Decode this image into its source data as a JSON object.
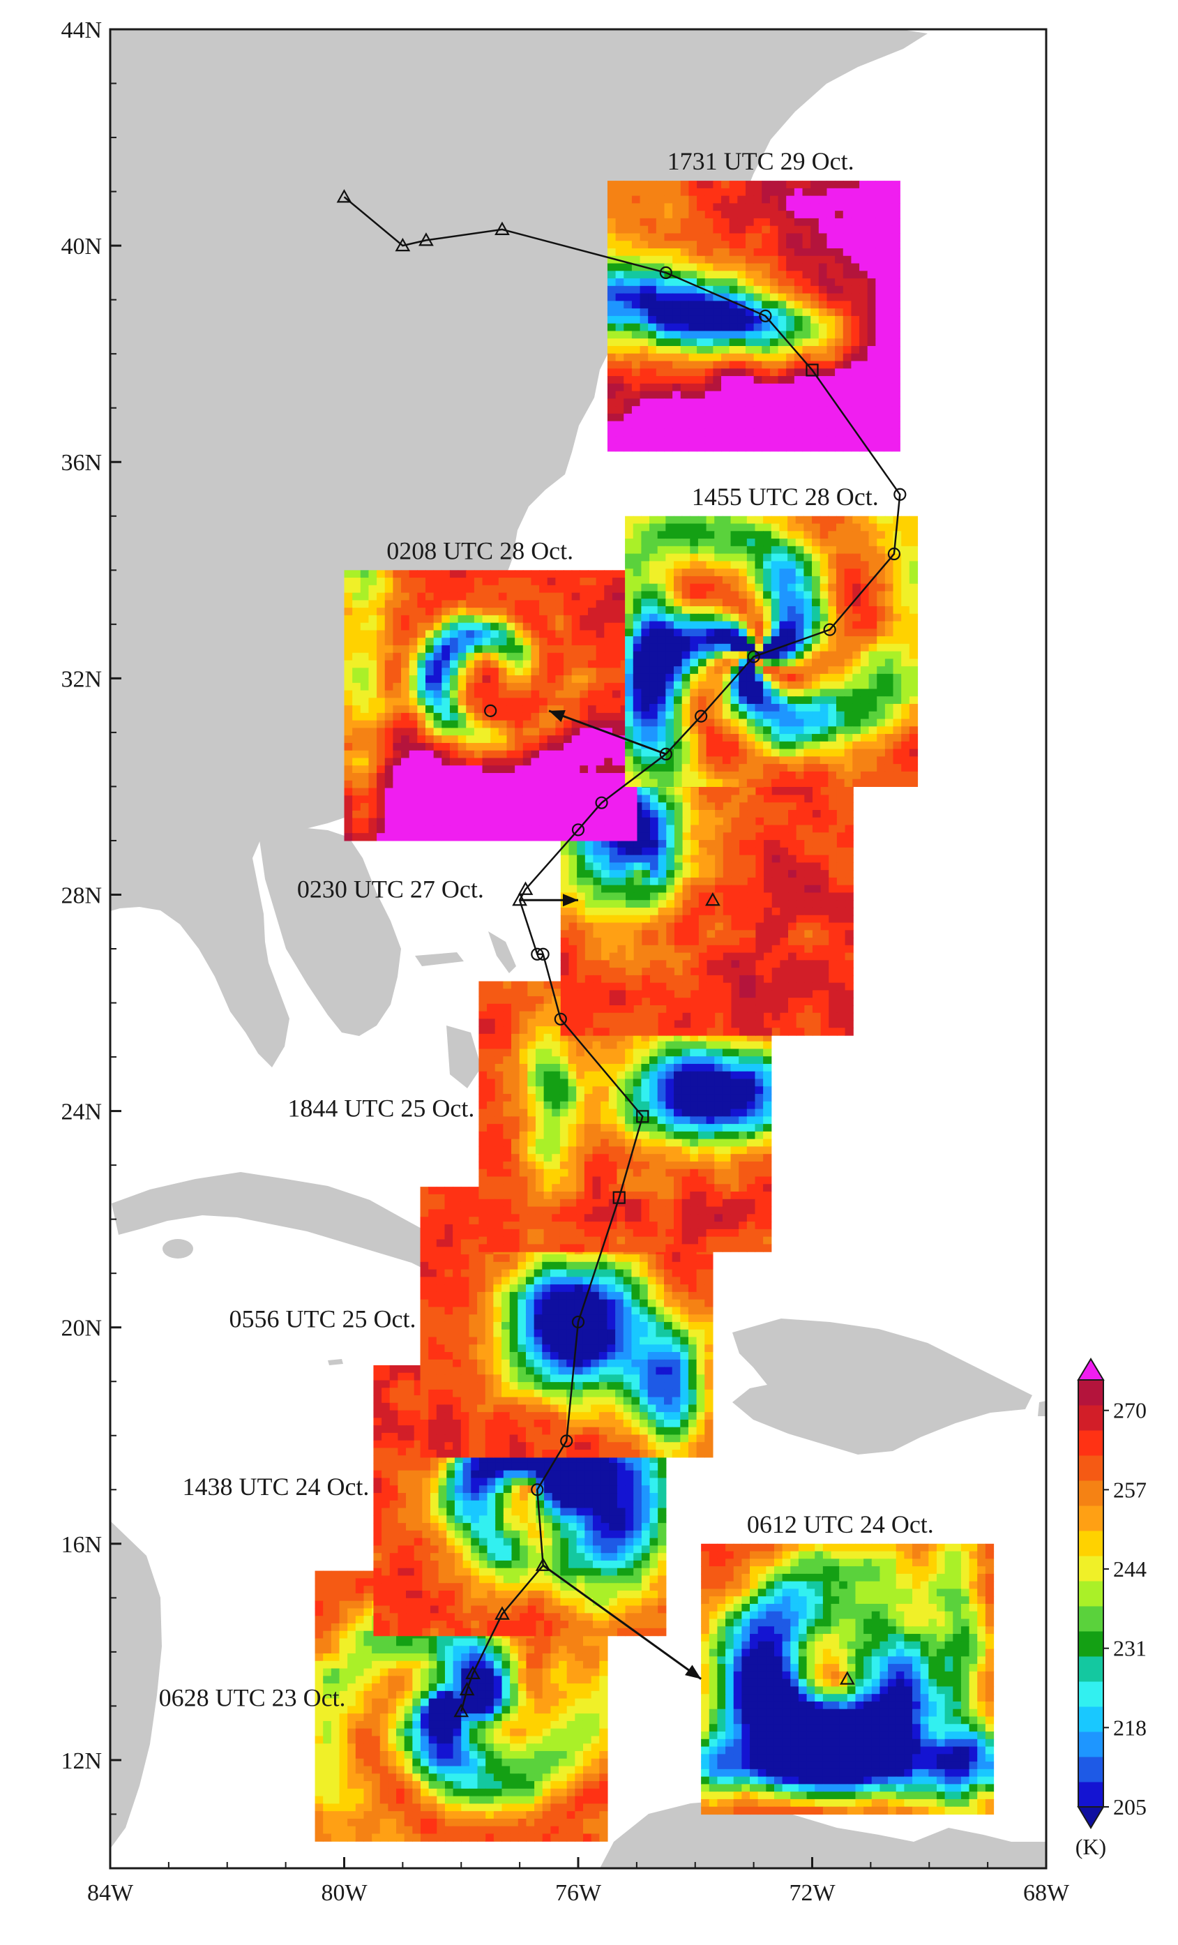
{
  "map": {
    "lon_range": [
      -84,
      -68
    ],
    "lat_range": [
      10,
      44
    ],
    "land_color": "#c8c8c8",
    "ocean_color": "#ffffff",
    "x_ticks": [
      {
        "lon": -84,
        "label": "84W"
      },
      {
        "lon": -80,
        "label": "80W"
      },
      {
        "lon": -76,
        "label": "76W"
      },
      {
        "lon": -72,
        "label": "72W"
      },
      {
        "lon": -68,
        "label": "68W"
      }
    ],
    "y_ticks": [
      {
        "lat": 12,
        "label": "12N"
      },
      {
        "lat": 16,
        "label": "16N"
      },
      {
        "lat": 20,
        "label": "20N"
      },
      {
        "lat": 24,
        "label": "24N"
      },
      {
        "lat": 28,
        "label": "28N"
      },
      {
        "lat": 32,
        "label": "32N"
      },
      {
        "lat": 36,
        "label": "36N"
      },
      {
        "lat": 40,
        "label": "40N"
      },
      {
        "lat": 44,
        "label": "44N"
      }
    ]
  },
  "panels": [
    {
      "id": "p0628",
      "label": "0628 UTC 23 Oct.",
      "lon": [
        -80.5,
        -75.5
      ],
      "lat": [
        10.5,
        15.5
      ],
      "variant": "pinwheel",
      "center": [
        -78,
        13
      ]
    },
    {
      "id": "p1438",
      "label": "1438 UTC 24 Oct.",
      "lon": [
        -79.5,
        -74.5
      ],
      "lat": [
        14.3,
        19.3
      ],
      "variant": "curl",
      "center": [
        -76.7,
        17
      ]
    },
    {
      "id": "p0556",
      "label": "0556 UTC 25 Oct.",
      "lon": [
        -78.7,
        -73.7
      ],
      "lat": [
        17.6,
        22.6
      ],
      "variant": "blob",
      "center": [
        -76,
        20
      ]
    },
    {
      "id": "p1844",
      "label": "1844 UTC 25 Oct.",
      "lon": [
        -77.7,
        -72.7
      ],
      "lat": [
        21.4,
        26.4
      ],
      "variant": "wide",
      "center": [
        -74.5,
        24.3
      ]
    },
    {
      "id": "p0230",
      "label": "0230 UTC 27 Oct.",
      "lon": [
        -76.3,
        -71.3
      ],
      "lat": [
        25.4,
        30.4
      ],
      "variant": "comma",
      "center": [
        -74.8,
        28.4
      ]
    },
    {
      "id": "p0208",
      "label": "0208 UTC 28 Oct.",
      "lon": [
        -80,
        -75
      ],
      "lat": [
        29,
        34
      ],
      "variant": "spiral",
      "center": [
        -77.5,
        32
      ]
    },
    {
      "id": "p1455",
      "label": "1455 UTC 28 Oct.",
      "lon": [
        -75.2,
        -70.2
      ],
      "lat": [
        30,
        35
      ],
      "variant": "bands",
      "center": [
        -73,
        32.4
      ]
    },
    {
      "id": "p1731",
      "label": "1731 UTC 29 Oct.",
      "lon": [
        -75.5,
        -70.5
      ],
      "lat": [
        36.2,
        41.2
      ],
      "variant": "frontal",
      "center": [
        -73.3,
        38.6
      ]
    },
    {
      "id": "p0612",
      "label": "0612 UTC 24 Oct.",
      "lon": [
        -73.9,
        -68.9
      ],
      "lat": [
        11,
        16
      ],
      "variant": "hook",
      "center": [
        -71.4,
        13.5
      ]
    }
  ],
  "track": [
    {
      "lon": -78.0,
      "lat": 12.9,
      "marker": "triangle"
    },
    {
      "lon": -77.9,
      "lat": 13.3,
      "marker": "triangle"
    },
    {
      "lon": -77.8,
      "lat": 13.6,
      "marker": "triangle"
    },
    {
      "lon": -77.3,
      "lat": 14.7,
      "marker": "triangle"
    },
    {
      "lon": -76.6,
      "lat": 15.6,
      "marker": "triangle"
    },
    {
      "lon": -76.7,
      "lat": 17.0,
      "marker": "circle"
    },
    {
      "lon": -76.2,
      "lat": 17.9,
      "marker": "circle"
    },
    {
      "lon": -76.0,
      "lat": 20.1,
      "marker": "circle"
    },
    {
      "lon": -75.3,
      "lat": 22.4,
      "marker": "square"
    },
    {
      "lon": -74.9,
      "lat": 23.9,
      "marker": "square"
    },
    {
      "lon": -76.3,
      "lat": 25.7,
      "marker": "circle"
    },
    {
      "lon": -76.6,
      "lat": 26.9,
      "marker": "circle"
    },
    {
      "lon": -76.7,
      "lat": 26.9,
      "marker": "circle"
    },
    {
      "lon": -77.0,
      "lat": 27.9,
      "marker": "triangle"
    },
    {
      "lon": -76.9,
      "lat": 28.1,
      "marker": "triangle"
    },
    {
      "lon": -76.0,
      "lat": 29.2,
      "marker": "circle"
    },
    {
      "lon": -75.6,
      "lat": 29.7,
      "marker": "circle"
    },
    {
      "lon": -74.5,
      "lat": 30.6,
      "marker": "circle"
    },
    {
      "lon": -73.9,
      "lat": 31.3,
      "marker": "circle"
    },
    {
      "lon": -73.0,
      "lat": 32.4,
      "marker": "circle"
    },
    {
      "lon": -71.7,
      "lat": 32.9,
      "marker": "circle"
    },
    {
      "lon": -70.6,
      "lat": 34.3,
      "marker": "circle"
    },
    {
      "lon": -70.5,
      "lat": 35.4,
      "marker": "circle"
    },
    {
      "lon": -72.0,
      "lat": 37.7,
      "marker": "square"
    },
    {
      "lon": -72.8,
      "lat": 38.7,
      "marker": "circle"
    },
    {
      "lon": -74.5,
      "lat": 39.5,
      "marker": "circle"
    },
    {
      "lon": -77.3,
      "lat": 40.3,
      "marker": "triangle"
    },
    {
      "lon": -78.6,
      "lat": 40.1,
      "marker": "triangle"
    },
    {
      "lon": -79.0,
      "lat": 40.0,
      "marker": "triangle"
    },
    {
      "lon": -80.0,
      "lat": 40.9,
      "marker": "triangle"
    }
  ],
  "extra_markers": [
    {
      "lon": -73.7,
      "lat": 27.9,
      "marker": "triangle"
    },
    {
      "lon": -71.4,
      "lat": 13.5,
      "marker": "triangle"
    },
    {
      "lon": -77.5,
      "lat": 31.4,
      "marker": "circle"
    }
  ],
  "arrows": [
    {
      "from": [
        -74.5,
        30.6
      ],
      "to": [
        -76.5,
        31.4
      ]
    },
    {
      "from": [
        -77.0,
        27.9
      ],
      "to": [
        -76.0,
        27.9
      ]
    },
    {
      "from": [
        -76.6,
        15.6
      ],
      "to": [
        -73.9,
        13.5
      ]
    }
  ],
  "colorbar": {
    "unit": "(K)",
    "colors": [
      "#1414d2",
      "#1e5ae6",
      "#1e96ff",
      "#19c8ff",
      "#32f0f0",
      "#14c8a0",
      "#14a014",
      "#5ad23c",
      "#aaf028",
      "#f0f028",
      "#ffd200",
      "#ffa014",
      "#f58214",
      "#f55a14",
      "#ff3214",
      "#d21e28",
      "#b4143c"
    ],
    "under_color": "#0f0fa0",
    "over_color": "#f01ef0",
    "ticks": [
      {
        "value": 205,
        "label": "205"
      },
      {
        "value": 218,
        "label": "218"
      },
      {
        "value": 231,
        "label": "231"
      },
      {
        "value": 244,
        "label": "244"
      },
      {
        "value": 257,
        "label": "257"
      },
      {
        "value": 270,
        "label": "270"
      }
    ],
    "range": [
      205,
      275
    ]
  }
}
